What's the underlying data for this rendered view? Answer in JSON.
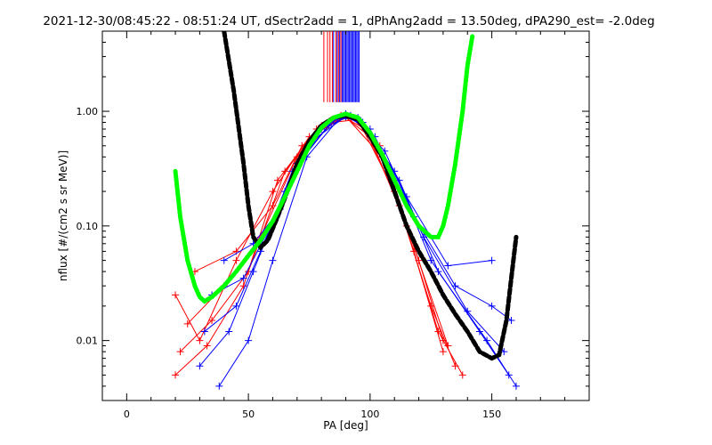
{
  "chart_data": {
    "type": "scatter",
    "title": "2021-12-30/08:45:22 - 08:51:24 UT, dSectr2add = 1, dPhAng2add = 13.50deg, dPA290_est=  -2.0deg",
    "xlabel": "PA [deg]",
    "ylabel": "nflux [#/(cm2 s sr MeV)]",
    "xlim": [
      -10,
      190
    ],
    "ylim": [
      0.003,
      5.0
    ],
    "yscale": "log",
    "grid": false,
    "x_ticks": [
      0,
      50,
      100,
      150
    ],
    "x_tick_labels": [
      "0",
      "50",
      "100",
      "150"
    ],
    "y_ticks": [
      0.01,
      0.1,
      1.0
    ],
    "y_tick_labels": [
      "0.01",
      "0.10",
      "1.00"
    ],
    "colors": {
      "red": "#ff0000",
      "blue": "#0000ff",
      "black": "#000000",
      "green": "#00ff00"
    },
    "series": [
      {
        "style": "line+plus",
        "color": "red",
        "traces_note": "many red pitch-angle profiles",
        "profiles": [
          [
            [
              20,
              0.025
            ],
            [
              30,
              0.01
            ],
            [
              45,
              0.05
            ],
            [
              60,
              0.2
            ],
            [
              75,
              0.6
            ],
            [
              90,
              0.9
            ],
            [
              105,
              0.4
            ],
            [
              120,
              0.05
            ],
            [
              130,
              0.01
            ]
          ],
          [
            [
              22,
              0.008
            ],
            [
              35,
              0.015
            ],
            [
              50,
              0.04
            ],
            [
              65,
              0.3
            ],
            [
              80,
              0.75
            ],
            [
              90,
              0.88
            ],
            [
              100,
              0.6
            ],
            [
              115,
              0.1
            ],
            [
              132,
              0.009
            ]
          ],
          [
            [
              25,
              0.014
            ],
            [
              40,
              0.03
            ],
            [
              55,
              0.08
            ],
            [
              70,
              0.4
            ],
            [
              85,
              0.8
            ],
            [
              95,
              0.85
            ],
            [
              110,
              0.2
            ],
            [
              125,
              0.02
            ],
            [
              135,
              0.006
            ]
          ],
          [
            [
              28,
              0.04
            ],
            [
              45,
              0.06
            ],
            [
              60,
              0.15
            ],
            [
              72,
              0.5
            ],
            [
              88,
              0.92
            ],
            [
              98,
              0.7
            ],
            [
              112,
              0.15
            ],
            [
              128,
              0.012
            ],
            [
              138,
              0.005
            ]
          ],
          [
            [
              20,
              0.005
            ],
            [
              33,
              0.009
            ],
            [
              48,
              0.03
            ],
            [
              62,
              0.25
            ],
            [
              78,
              0.7
            ],
            [
              92,
              0.9
            ],
            [
              104,
              0.5
            ],
            [
              118,
              0.06
            ],
            [
              130,
              0.008
            ]
          ]
        ]
      },
      {
        "style": "line+plus",
        "color": "blue",
        "traces_note": "many blue pitch-angle profiles",
        "profiles": [
          [
            [
              30,
              0.006
            ],
            [
              42,
              0.012
            ],
            [
              52,
              0.04
            ],
            [
              65,
              0.2
            ],
            [
              80,
              0.7
            ],
            [
              90,
              0.95
            ],
            [
              102,
              0.6
            ],
            [
              118,
              0.12
            ],
            [
              135,
              0.03
            ],
            [
              150,
              0.02
            ],
            [
              158,
              0.015
            ]
          ],
          [
            [
              32,
              0.012
            ],
            [
              45,
              0.02
            ],
            [
              55,
              0.06
            ],
            [
              68,
              0.3
            ],
            [
              83,
              0.75
            ],
            [
              92,
              0.92
            ],
            [
              106,
              0.45
            ],
            [
              122,
              0.08
            ],
            [
              140,
              0.018
            ],
            [
              155,
              0.008
            ]
          ],
          [
            [
              35,
              0.025
            ],
            [
              48,
              0.035
            ],
            [
              58,
              0.09
            ],
            [
              70,
              0.35
            ],
            [
              85,
              0.85
            ],
            [
              95,
              0.88
            ],
            [
              110,
              0.3
            ],
            [
              125,
              0.05
            ],
            [
              145,
              0.012
            ],
            [
              157,
              0.005
            ]
          ],
          [
            [
              38,
              0.004
            ],
            [
              50,
              0.01
            ],
            [
              60,
              0.05
            ],
            [
              74,
              0.4
            ],
            [
              88,
              0.9
            ],
            [
              97,
              0.8
            ],
            [
              112,
              0.25
            ],
            [
              128,
              0.04
            ],
            [
              148,
              0.01
            ],
            [
              160,
              0.004
            ]
          ],
          [
            [
              40,
              0.05
            ],
            [
              52,
              0.07
            ],
            [
              63,
              0.14
            ],
            [
              76,
              0.55
            ],
            [
              90,
              0.9
            ],
            [
              100,
              0.7
            ],
            [
              115,
              0.18
            ],
            [
              132,
              0.045
            ],
            [
              150,
              0.05
            ]
          ]
        ]
      },
      {
        "name": "",
        "style": "thick-dashed",
        "color": "black",
        "x": [
          40,
          44,
          48,
          50,
          52,
          55,
          58,
          62,
          66,
          70,
          75,
          80,
          85,
          90,
          95,
          100,
          105,
          110,
          115,
          120,
          125,
          130,
          135,
          140,
          145,
          150,
          153,
          156,
          158,
          160
        ],
        "y": [
          5.0,
          1.5,
          0.35,
          0.15,
          0.08,
          0.065,
          0.075,
          0.12,
          0.2,
          0.35,
          0.55,
          0.75,
          0.88,
          0.92,
          0.85,
          0.6,
          0.4,
          0.2,
          0.1,
          0.06,
          0.04,
          0.025,
          0.017,
          0.012,
          0.008,
          0.007,
          0.0075,
          0.015,
          0.035,
          0.08
        ]
      },
      {
        "name": "",
        "style": "thick-dotted",
        "color": "green",
        "x": [
          20,
          22,
          25,
          28,
          30,
          32,
          35,
          40,
          45,
          50,
          55,
          60,
          65,
          70,
          75,
          80,
          85,
          90,
          95,
          100,
          105,
          110,
          115,
          120,
          125,
          128,
          130,
          132,
          135,
          138,
          140,
          142
        ],
        "y": [
          0.3,
          0.12,
          0.05,
          0.03,
          0.024,
          0.022,
          0.024,
          0.03,
          0.04,
          0.055,
          0.075,
          0.11,
          0.18,
          0.3,
          0.5,
          0.72,
          0.88,
          0.95,
          0.88,
          0.65,
          0.42,
          0.25,
          0.15,
          0.1,
          0.08,
          0.08,
          0.1,
          0.15,
          0.35,
          1.0,
          2.5,
          4.5
        ]
      }
    ],
    "vertical_bars": {
      "color_note": "red and blue vertical ticks near top between x=80 and x=96",
      "red_x": [
        81,
        82.5,
        83.5,
        84.5,
        86,
        87,
        88
      ],
      "blue_x": [
        85,
        86.5,
        87.5,
        88.5,
        89,
        89.5,
        90,
        90.5,
        91,
        91.5,
        92,
        92.5,
        93,
        93.5,
        94,
        94.5,
        95,
        95.5
      ],
      "y_range": [
        1.2,
        5.0
      ]
    }
  }
}
